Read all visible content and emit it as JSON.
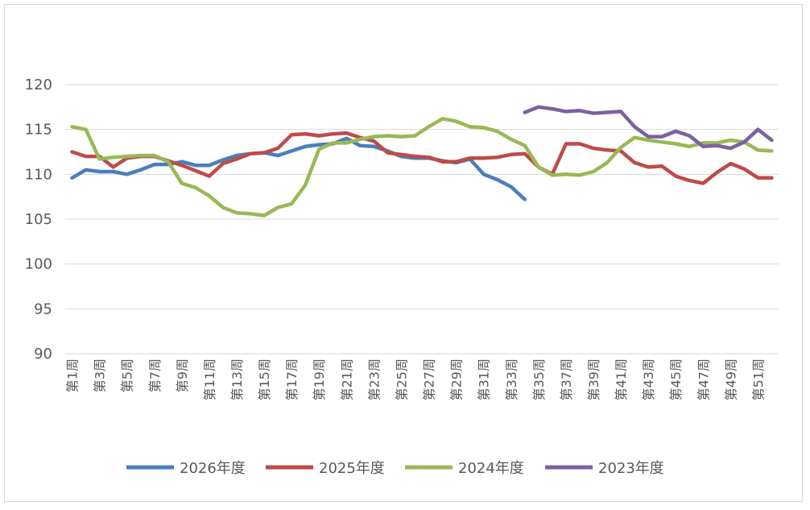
{
  "chart_data": {
    "type": "line",
    "title": "",
    "xlabel": "",
    "ylabel": "",
    "ylim": [
      90,
      120
    ],
    "yticks": [
      90,
      95,
      100,
      105,
      110,
      115,
      120
    ],
    "grid": true,
    "legend_position": "bottom",
    "categories": [
      "第1周",
      "第2周",
      "第3周",
      "第4周",
      "第5周",
      "第6周",
      "第7周",
      "第8周",
      "第9周",
      "第10周",
      "第11周",
      "第12周",
      "第13周",
      "第14周",
      "第15周",
      "第16周",
      "第17周",
      "第18周",
      "第19周",
      "第20周",
      "第21周",
      "第22周",
      "第23周",
      "第24周",
      "第25周",
      "第26周",
      "第27周",
      "第28周",
      "第29周",
      "第30周",
      "第31周",
      "第32周",
      "第33周",
      "第34周",
      "第35周",
      "第36周",
      "第37周",
      "第38周",
      "第39周",
      "第40周",
      "第41周",
      "第42周",
      "第43周",
      "第44周",
      "第45周",
      "第46周",
      "第47周",
      "第48周",
      "第49周",
      "第50周",
      "第51周",
      "第52周"
    ],
    "x_tick_labels": [
      "第1周",
      "第3周",
      "第5周",
      "第7周",
      "第9周",
      "第11周",
      "第13周",
      "第15周",
      "第17周",
      "第19周",
      "第21周",
      "第23周",
      "第25周",
      "第27周",
      "第29周",
      "第31周",
      "第33周",
      "第35周",
      "第37周",
      "第39周",
      "第41周",
      "第43周",
      "第45周",
      "第47周",
      "第49周",
      "第51周"
    ],
    "series": [
      {
        "name": "2026年度",
        "color": "#4a7ebb",
        "values": [
          109.6,
          110.5,
          110.3,
          110.3,
          110.0,
          110.5,
          111.1,
          111.1,
          111.4,
          111.0,
          111.0,
          111.6,
          112.1,
          112.3,
          112.4,
          112.1,
          112.6,
          113.1,
          113.3,
          113.4,
          114.0,
          113.2,
          113.1,
          112.6,
          112.0,
          111.8,
          111.8,
          111.5,
          111.3,
          111.7,
          110.0,
          109.4,
          108.6,
          107.2,
          null,
          null,
          null,
          null,
          null,
          null,
          null,
          null,
          null,
          null,
          null,
          null,
          null,
          null,
          null,
          null,
          null,
          null
        ]
      },
      {
        "name": "2025年度",
        "color": "#be4b48",
        "values": [
          112.5,
          112.0,
          112.0,
          110.8,
          111.8,
          112.0,
          112.0,
          111.5,
          111.0,
          110.4,
          109.8,
          111.2,
          111.7,
          112.3,
          112.4,
          112.9,
          114.4,
          114.5,
          114.3,
          114.5,
          114.6,
          114.1,
          113.7,
          112.4,
          112.2,
          112.0,
          111.9,
          111.4,
          111.4,
          111.8,
          111.8,
          111.9,
          112.2,
          112.3,
          110.8,
          110.0,
          113.4,
          113.4,
          112.9,
          112.7,
          112.6,
          111.3,
          110.8,
          110.9,
          109.8,
          109.3,
          109.0,
          110.2,
          111.2,
          110.6,
          109.6,
          109.6
        ]
      },
      {
        "name": "2024年度",
        "color": "#98b954",
        "values": [
          115.3,
          115.0,
          111.7,
          111.9,
          112.0,
          112.1,
          112.1,
          111.4,
          109.0,
          108.5,
          107.6,
          106.3,
          105.7,
          105.6,
          105.4,
          106.3,
          106.7,
          108.8,
          112.8,
          113.5,
          113.5,
          113.9,
          114.2,
          114.3,
          114.2,
          114.3,
          115.3,
          116.2,
          115.9,
          115.3,
          115.2,
          114.8,
          113.9,
          113.2,
          110.8,
          109.9,
          110.0,
          109.9,
          110.3,
          111.3,
          113.0,
          114.1,
          113.8,
          113.6,
          113.4,
          113.1,
          113.5,
          113.5,
          113.8,
          113.6,
          112.7,
          112.6
        ]
      },
      {
        "name": "2023年度",
        "color": "#7d60a0",
        "values": [
          null,
          null,
          null,
          null,
          null,
          null,
          null,
          null,
          null,
          null,
          null,
          null,
          null,
          null,
          null,
          null,
          null,
          null,
          null,
          null,
          null,
          null,
          null,
          null,
          null,
          null,
          null,
          null,
          null,
          null,
          null,
          null,
          null,
          116.9,
          117.5,
          117.3,
          117.0,
          117.1,
          116.8,
          116.9,
          117.0,
          115.3,
          114.2,
          114.2,
          114.8,
          114.3,
          113.1,
          113.2,
          112.9,
          113.6,
          115.0,
          113.8
        ]
      }
    ]
  }
}
